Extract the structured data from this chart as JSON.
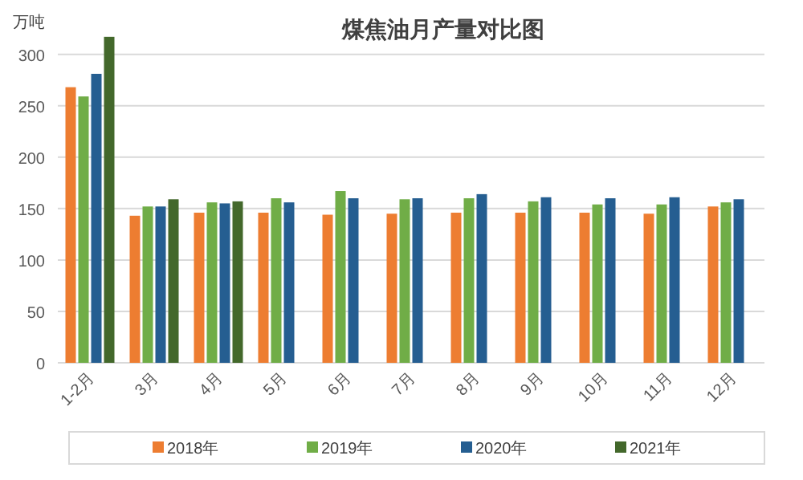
{
  "chart_data": {
    "type": "bar",
    "title": "煤焦油月产量对比图",
    "ylabel": "万吨",
    "categories": [
      "1-2月",
      "3月",
      "4月",
      "5月",
      "6月",
      "7月",
      "8月",
      "9月",
      "10月",
      "11月",
      "12月"
    ],
    "series": [
      {
        "name": "2018年",
        "color": "#ed7d31",
        "values": [
          268,
          143,
          146,
          146,
          144,
          145,
          146,
          146,
          146,
          145,
          152
        ]
      },
      {
        "name": "2019年",
        "color": "#70ad47",
        "values": [
          259,
          152,
          156,
          160,
          167,
          159,
          160,
          157,
          154,
          154,
          156
        ]
      },
      {
        "name": "2020年",
        "color": "#255e91",
        "values": [
          281,
          152,
          155,
          156,
          160,
          160,
          164,
          161,
          160,
          161,
          159
        ]
      },
      {
        "name": "2021年",
        "color": "#43682b",
        "values": [
          317,
          159,
          157,
          null,
          null,
          null,
          null,
          null,
          null,
          null,
          null
        ]
      }
    ],
    "ylim": [
      0,
      320
    ],
    "yticks": [
      0,
      50,
      100,
      150,
      200,
      250,
      300
    ],
    "grid": "y",
    "legend": "bottom"
  }
}
